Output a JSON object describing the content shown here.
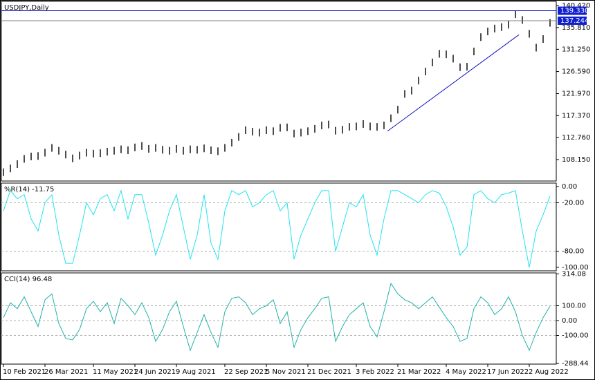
{
  "chart_data": [
    {
      "type": "bar-range",
      "title": "USDJPY,Daily",
      "color": "#000000",
      "categories": [
        "10 Feb 2021",
        null,
        null,
        null,
        null,
        null,
        "26 Mar 2021",
        null,
        null,
        null,
        null,
        null,
        null,
        "11 May 2021",
        null,
        null,
        null,
        null,
        null,
        "24 Jun 2021",
        null,
        null,
        null,
        null,
        null,
        "9 Aug 2021",
        null,
        null,
        null,
        null,
        null,
        null,
        "22 Sep 2021",
        null,
        null,
        null,
        null,
        null,
        "5 Nov 2021",
        null,
        null,
        null,
        null,
        null,
        "21 Dec 2021",
        null,
        null,
        null,
        null,
        null,
        null,
        "3 Feb 2022",
        null,
        null,
        null,
        null,
        null,
        "21 Mar 2022",
        null,
        null,
        null,
        null,
        null,
        null,
        "4 May 2022",
        null,
        null,
        null,
        null,
        null,
        "17 Jun 2022",
        null,
        null,
        null,
        null,
        null,
        "2 Aug 2022",
        null,
        null,
        null
      ],
      "high": [
        106.3,
        107.1,
        108,
        109.1,
        109.6,
        109.7,
        110.4,
        111.4,
        110.8,
        110,
        109.2,
        109.8,
        110.4,
        110.2,
        110.3,
        110.6,
        110.8,
        111.1,
        110.9,
        111.5,
        111.8,
        111.2,
        111.4,
        111,
        110.8,
        111.2,
        110.8,
        111.1,
        111,
        111.3,
        110.9,
        110.7,
        111.4,
        112.5,
        113.7,
        115.1,
        114.8,
        114.6,
        115.1,
        114.9,
        115.6,
        115.7,
        114.4,
        114.6,
        114.9,
        115.4,
        116.1,
        116.3,
        115,
        115.2,
        115.8,
        115.9,
        116.4,
        115.9,
        115.8,
        116.1,
        117.6,
        119.4,
        122.7,
        123.4,
        125.5,
        127.4,
        129.3,
        131.1,
        131,
        130.1,
        128.3,
        128.4,
        131.6,
        134.6,
        135.8,
        136.4,
        136.7,
        137.2,
        139.4,
        138.2,
        135.3,
        132.4,
        134.2,
        137.6
      ],
      "low": [
        104.7,
        105.5,
        106.4,
        107.5,
        108,
        108.1,
        108.8,
        109.8,
        109.2,
        108.4,
        107.6,
        108.2,
        108.8,
        108.6,
        108.7,
        109,
        109.2,
        109.5,
        109.3,
        109.9,
        110.2,
        109.6,
        109.8,
        109.4,
        109.2,
        109.6,
        109.2,
        109.5,
        109.4,
        109.7,
        109.3,
        109.1,
        109.8,
        110.9,
        112.1,
        113.5,
        113.2,
        113,
        113.5,
        113.3,
        114,
        114.1,
        112.8,
        113,
        113.3,
        113.8,
        114.5,
        114.7,
        113.4,
        113.6,
        114.2,
        114.3,
        114.8,
        114.3,
        114.2,
        114.5,
        116,
        117.8,
        121.1,
        121.8,
        123.9,
        125.8,
        127.7,
        129.5,
        129.4,
        128.5,
        126.7,
        126.8,
        130,
        133,
        134.2,
        134.8,
        135.1,
        135.6,
        137.8,
        136.6,
        133.7,
        130.8,
        132.6,
        136
      ],
      "ylim": [
        103.66,
        141.29
      ],
      "yticks": [
        {
          "value": 140.42,
          "label": "140.420"
        },
        {
          "value": 135.81,
          "label": "135.810"
        },
        {
          "value": 131.25,
          "label": "131.250"
        },
        {
          "value": 126.59,
          "label": "126.590"
        },
        {
          "value": 121.97,
          "label": "121.970"
        },
        {
          "value": 117.37,
          "label": "117.370"
        },
        {
          "value": 112.76,
          "label": "112.760"
        },
        {
          "value": 108.15,
          "label": "108.150"
        }
      ],
      "hlines": [
        {
          "value": 139.33,
          "label": "139.330"
        },
        {
          "value": 137.244,
          "label": "137.244"
        }
      ],
      "trendline": {
        "x": [
          55.5,
          74.5
        ],
        "y": [
          114.1,
          134.3
        ],
        "color": "#1010c0"
      }
    },
    {
      "type": "line",
      "title": "%R(14) -11.75",
      "color": "#1ee3ef",
      "values": [
        -30,
        -5,
        -15,
        -10,
        -40,
        -55,
        -20,
        -10,
        -60,
        -95,
        -95,
        -60,
        -20,
        -35,
        -15,
        -10,
        -30,
        -5,
        -40,
        -10,
        -10,
        -45,
        -85,
        -60,
        -30,
        -10,
        -50,
        -90,
        -60,
        -10,
        -70,
        -90,
        -30,
        -5,
        -10,
        -5,
        -25,
        -20,
        -10,
        -5,
        -30,
        -20,
        -90,
        -60,
        -40,
        -20,
        -5,
        -5,
        -80,
        -50,
        -20,
        -25,
        -10,
        -60,
        -85,
        -40,
        -5,
        -5,
        -10,
        -15,
        -20,
        -10,
        -5,
        -8,
        -25,
        -50,
        -85,
        -75,
        -10,
        -5,
        -15,
        -20,
        -10,
        -8,
        -5,
        -55,
        -100,
        -55,
        -35,
        -11.75
      ],
      "ylim": [
        -104.3,
        4.3
      ],
      "yticks": [
        {
          "value": 0,
          "label": "0.00"
        },
        {
          "value": -20,
          "label": "-20.00"
        },
        {
          "value": -80,
          "label": "-80.00"
        },
        {
          "value": -100,
          "label": "-100.00"
        }
      ],
      "levels": [
        -20,
        -80
      ]
    },
    {
      "type": "line",
      "title": "CCI(14) 96.48",
      "color": "#20b2aa",
      "values": [
        20,
        120,
        80,
        160,
        60,
        -40,
        140,
        180,
        -20,
        -120,
        -130,
        -60,
        80,
        130,
        60,
        120,
        -20,
        150,
        100,
        40,
        120,
        20,
        -140,
        -60,
        60,
        130,
        -40,
        -200,
        -80,
        40,
        -80,
        -180,
        60,
        150,
        160,
        120,
        40,
        80,
        100,
        140,
        -20,
        60,
        -180,
        -60,
        20,
        80,
        150,
        160,
        -140,
        -40,
        40,
        80,
        120,
        -40,
        -110,
        60,
        250,
        180,
        140,
        120,
        80,
        120,
        160,
        90,
        20,
        -40,
        -140,
        -120,
        80,
        160,
        120,
        40,
        80,
        160,
        60,
        -100,
        -200,
        -80,
        20,
        96.48
      ],
      "ylim": [
        -293,
        321
      ],
      "yticks": [
        {
          "value": 314.08,
          "label": "314.08"
        },
        {
          "value": 100,
          "label": "100.00"
        },
        {
          "value": 0,
          "label": "0.00"
        },
        {
          "value": -100,
          "label": "-100.00"
        },
        {
          "value": -288.44,
          "label": "-288.44"
        }
      ],
      "levels": [
        100,
        0,
        -100
      ]
    }
  ]
}
